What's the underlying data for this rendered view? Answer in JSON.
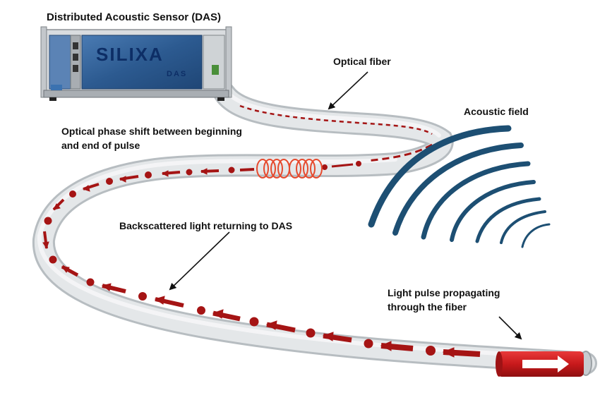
{
  "labels": {
    "title": "Distributed Acoustic Sensor (DAS)",
    "optical_fiber": "Optical fiber",
    "acoustic_field": "Acoustic field",
    "phase_shift_line1": "Optical phase shift between beginning",
    "phase_shift_line2": "and end of pulse",
    "backscattered": "Backscattered light returning to DAS",
    "pulse_line1": "Light pulse propagating",
    "pulse_line2": "through the fiber"
  },
  "device": {
    "brand": "SILIXA",
    "model": "DAS"
  },
  "colors": {
    "fiber": "#dde1e3",
    "fiber_edge": "#b9bfc3",
    "signal": "#a51414",
    "pulse": "#c8191b",
    "coil": "#e64a2e",
    "wave": "#1d4f73",
    "device_panel": "#2f5f96",
    "device_frame": "#d9dcdf"
  }
}
